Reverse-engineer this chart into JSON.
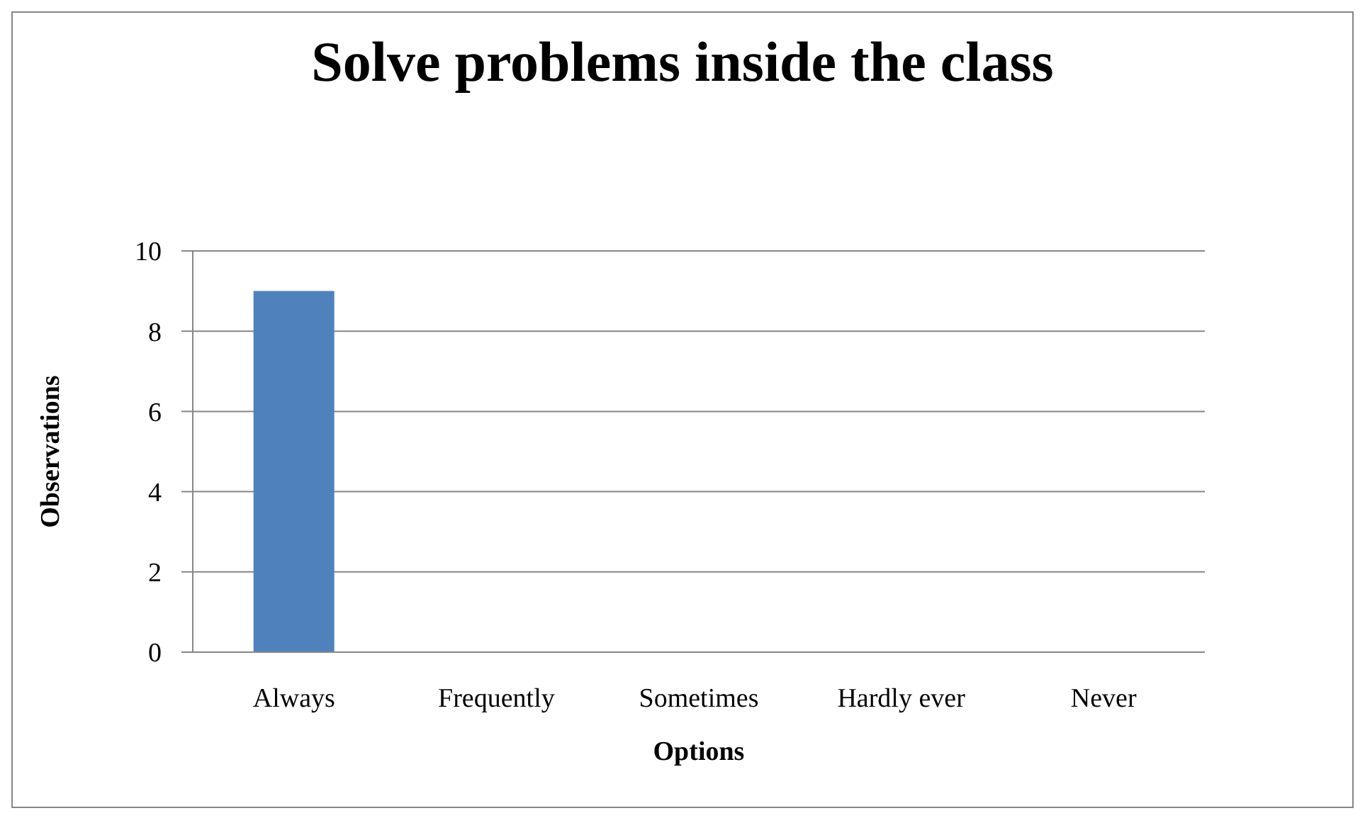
{
  "chart_data": {
    "type": "bar",
    "title": "Solve problems inside the class",
    "xlabel": "Options",
    "ylabel": "Observations",
    "categories": [
      "Always",
      "Frequently",
      "Sometimes",
      "Hardly ever",
      "Never"
    ],
    "values": [
      9,
      0,
      0,
      0,
      0
    ],
    "color": "#4f81bd",
    "ylim": [
      0,
      10
    ],
    "yticks": [
      0,
      2,
      4,
      6,
      8,
      10
    ],
    "grid": "y"
  }
}
